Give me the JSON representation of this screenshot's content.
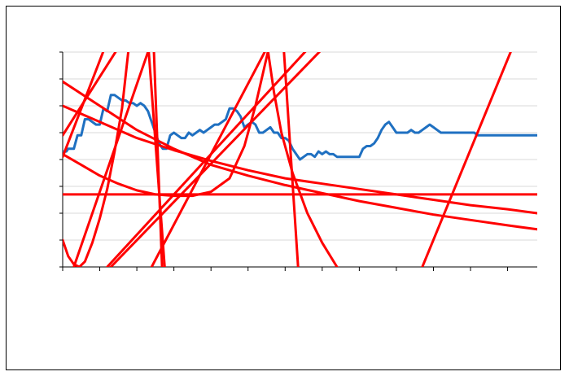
{
  "colors": {
    "series": "#1f70c1",
    "trendlines": "#ff0000",
    "gridline": "#d9d9d9",
    "axis": "#000000",
    "frame": "#000000"
  },
  "chart_data": {
    "type": "line",
    "title": "",
    "xlabel": "",
    "ylabel": "",
    "grid": "horizontal",
    "legend": "none",
    "xlim": [
      0,
      128
    ],
    "ylim": [
      0,
      8
    ],
    "x_ticks": [
      0,
      10,
      20,
      30,
      40,
      50,
      60,
      70,
      80,
      90,
      100,
      110,
      120
    ],
    "y_ticks": [
      0,
      1,
      2,
      3,
      4,
      5,
      6,
      7,
      8
    ],
    "series": [
      {
        "values": [
          [
            0,
            4.3
          ],
          [
            1,
            4.3
          ],
          [
            1.5,
            4.4
          ],
          [
            3,
            4.4
          ],
          [
            4,
            4.9
          ],
          [
            5,
            4.9
          ],
          [
            6,
            5.5
          ],
          [
            7,
            5.5
          ],
          [
            8,
            5.4
          ],
          [
            9,
            5.3
          ],
          [
            10,
            5.3
          ],
          [
            11,
            5.9
          ],
          [
            12,
            5.8
          ],
          [
            13,
            6.4
          ],
          [
            14,
            6.4
          ],
          [
            15,
            6.3
          ],
          [
            16,
            6.2
          ],
          [
            17,
            6.2
          ],
          [
            18,
            6.1
          ],
          [
            19,
            6.1
          ],
          [
            20,
            6.0
          ],
          [
            21,
            6.1
          ],
          [
            22,
            6.0
          ],
          [
            23,
            5.8
          ],
          [
            24,
            5.4
          ],
          [
            25,
            5.0
          ],
          [
            26,
            4.6
          ],
          [
            27,
            4.4
          ],
          [
            28,
            4.4
          ],
          [
            29,
            4.9
          ],
          [
            30,
            5.0
          ],
          [
            31,
            4.9
          ],
          [
            32,
            4.8
          ],
          [
            33,
            4.8
          ],
          [
            34,
            5.0
          ],
          [
            35,
            4.9
          ],
          [
            36,
            5.0
          ],
          [
            37,
            5.1
          ],
          [
            38,
            5.0
          ],
          [
            39,
            5.1
          ],
          [
            40,
            5.2
          ],
          [
            41,
            5.3
          ],
          [
            42,
            5.3
          ],
          [
            43,
            5.4
          ],
          [
            44,
            5.5
          ],
          [
            45,
            5.9
          ],
          [
            46,
            5.9
          ],
          [
            47,
            5.8
          ],
          [
            48,
            5.6
          ],
          [
            49,
            5.2
          ],
          [
            50,
            5.3
          ],
          [
            51,
            5.4
          ],
          [
            52,
            5.3
          ],
          [
            53,
            5.0
          ],
          [
            54,
            5.0
          ],
          [
            55,
            5.1
          ],
          [
            56,
            5.2
          ],
          [
            57,
            5.0
          ],
          [
            58,
            5.0
          ],
          [
            59,
            4.8
          ],
          [
            60,
            4.8
          ],
          [
            61,
            4.7
          ],
          [
            62,
            4.4
          ],
          [
            63,
            4.2
          ],
          [
            64,
            4.0
          ],
          [
            65,
            4.1
          ],
          [
            66,
            4.2
          ],
          [
            67,
            4.2
          ],
          [
            68,
            4.1
          ],
          [
            69,
            4.3
          ],
          [
            70,
            4.2
          ],
          [
            71,
            4.3
          ],
          [
            72,
            4.2
          ],
          [
            73,
            4.2
          ],
          [
            74,
            4.1
          ],
          [
            75,
            4.1
          ],
          [
            76,
            4.1
          ],
          [
            77,
            4.1
          ],
          [
            78,
            4.1
          ],
          [
            79,
            4.1
          ],
          [
            80,
            4.1
          ],
          [
            81,
            4.4
          ],
          [
            82,
            4.5
          ],
          [
            83,
            4.5
          ],
          [
            84,
            4.6
          ],
          [
            85,
            4.8
          ],
          [
            86,
            5.1
          ],
          [
            87,
            5.3
          ],
          [
            88,
            5.4
          ],
          [
            89,
            5.2
          ],
          [
            90,
            5.0
          ],
          [
            91,
            5.0
          ],
          [
            92,
            5.0
          ],
          [
            93,
            5.0
          ],
          [
            94,
            5.1
          ],
          [
            95,
            5.0
          ],
          [
            96,
            5.0
          ],
          [
            97,
            5.1
          ],
          [
            98,
            5.2
          ],
          [
            99,
            5.3
          ],
          [
            100,
            5.2
          ],
          [
            101,
            5.1
          ],
          [
            102,
            5.0
          ],
          [
            103,
            5.0
          ],
          [
            104,
            5.0
          ],
          [
            105,
            5.0
          ],
          [
            106,
            5.0
          ],
          [
            107,
            5.0
          ],
          [
            108,
            5.0
          ],
          [
            109,
            5.0
          ],
          [
            110,
            5.0
          ],
          [
            111,
            5.0
          ],
          [
            112,
            4.9
          ],
          [
            113,
            4.9
          ],
          [
            114,
            4.9
          ],
          [
            115,
            4.9
          ],
          [
            116,
            4.9
          ],
          [
            117,
            4.9
          ],
          [
            118,
            4.9
          ],
          [
            119,
            4.9
          ],
          [
            120,
            4.9
          ],
          [
            121,
            4.9
          ],
          [
            122,
            4.9
          ],
          [
            123,
            4.9
          ],
          [
            124,
            4.9
          ],
          [
            125,
            4.9
          ],
          [
            126,
            4.9
          ],
          [
            127,
            4.9
          ],
          [
            128,
            4.9
          ]
        ]
      }
    ],
    "trendlines": [
      {
        "kind": "line",
        "points": [
          [
            0,
            4.1
          ],
          [
            12,
            8.4
          ]
        ]
      },
      {
        "kind": "line",
        "points": [
          [
            0,
            4.9
          ],
          [
            17,
            8.6
          ]
        ]
      },
      {
        "kind": "line",
        "points": [
          [
            3,
            0
          ],
          [
            24,
            8.4
          ]
        ]
      },
      {
        "kind": "line",
        "points": [
          [
            24,
            0
          ],
          [
            56,
            8.4
          ]
        ]
      },
      {
        "kind": "line",
        "points": [
          [
            12,
            0
          ],
          [
            68,
            8.4
          ]
        ]
      },
      {
        "kind": "line",
        "points": [
          [
            13,
            0
          ],
          [
            72,
            8.4
          ]
        ]
      },
      {
        "kind": "line",
        "points": [
          [
            23,
            8.4
          ],
          [
            27.5,
            0
          ]
        ]
      },
      {
        "kind": "line",
        "points": [
          [
            24.5,
            8.4
          ],
          [
            26.8,
            0
          ]
        ]
      },
      {
        "kind": "line",
        "points": [
          [
            59.5,
            8.4
          ],
          [
            63.5,
            0
          ]
        ]
      },
      {
        "kind": "line",
        "points": [
          [
            97,
            0
          ],
          [
            122,
            8.4
          ]
        ]
      },
      {
        "kind": "line",
        "points": [
          [
            0,
            2.7
          ],
          [
            128,
            2.7
          ]
        ]
      },
      {
        "kind": "curve",
        "points": [
          [
            0,
            6.9
          ],
          [
            10,
            6.0
          ],
          [
            20,
            5.1
          ],
          [
            30,
            4.4
          ],
          [
            40,
            3.8
          ],
          [
            50,
            3.4
          ],
          [
            60,
            3.05
          ],
          [
            70,
            2.75
          ],
          [
            80,
            2.45
          ],
          [
            90,
            2.2
          ],
          [
            100,
            1.95
          ],
          [
            110,
            1.75
          ],
          [
            120,
            1.55
          ],
          [
            128,
            1.4
          ]
        ]
      },
      {
        "kind": "curve",
        "points": [
          [
            0,
            6.0
          ],
          [
            10,
            5.4
          ],
          [
            20,
            4.8
          ],
          [
            30,
            4.35
          ],
          [
            40,
            3.95
          ],
          [
            50,
            3.6
          ],
          [
            60,
            3.3
          ],
          [
            70,
            3.1
          ],
          [
            80,
            2.9
          ],
          [
            90,
            2.7
          ],
          [
            100,
            2.5
          ],
          [
            110,
            2.3
          ],
          [
            120,
            2.15
          ],
          [
            128,
            2.0
          ]
        ]
      },
      {
        "kind": "curve",
        "points": [
          [
            0,
            4.2
          ],
          [
            5,
            3.8
          ],
          [
            10,
            3.4
          ],
          [
            15,
            3.1
          ],
          [
            20,
            2.85
          ],
          [
            25,
            2.7
          ],
          [
            30,
            2.65
          ],
          [
            35,
            2.65
          ],
          [
            40,
            2.8
          ],
          [
            45,
            3.3
          ],
          [
            49,
            4.5
          ],
          [
            52,
            6.0
          ],
          [
            56,
            8.4
          ]
        ]
      },
      {
        "kind": "curve",
        "points": [
          [
            55,
            8.4
          ],
          [
            57,
            6.5
          ],
          [
            59,
            5.0
          ],
          [
            62,
            3.5
          ],
          [
            66,
            2.0
          ],
          [
            70,
            0.9
          ],
          [
            74,
            0
          ]
        ]
      },
      {
        "kind": "curve",
        "points": [
          [
            0,
            1.0
          ],
          [
            1.5,
            0.4
          ],
          [
            3,
            0.1
          ],
          [
            4.5,
            0
          ],
          [
            6,
            0.2
          ],
          [
            8,
            0.9
          ],
          [
            10,
            1.8
          ],
          [
            12,
            2.9
          ],
          [
            14,
            4.3
          ],
          [
            16,
            5.9
          ],
          [
            18,
            8.4
          ]
        ]
      }
    ]
  }
}
